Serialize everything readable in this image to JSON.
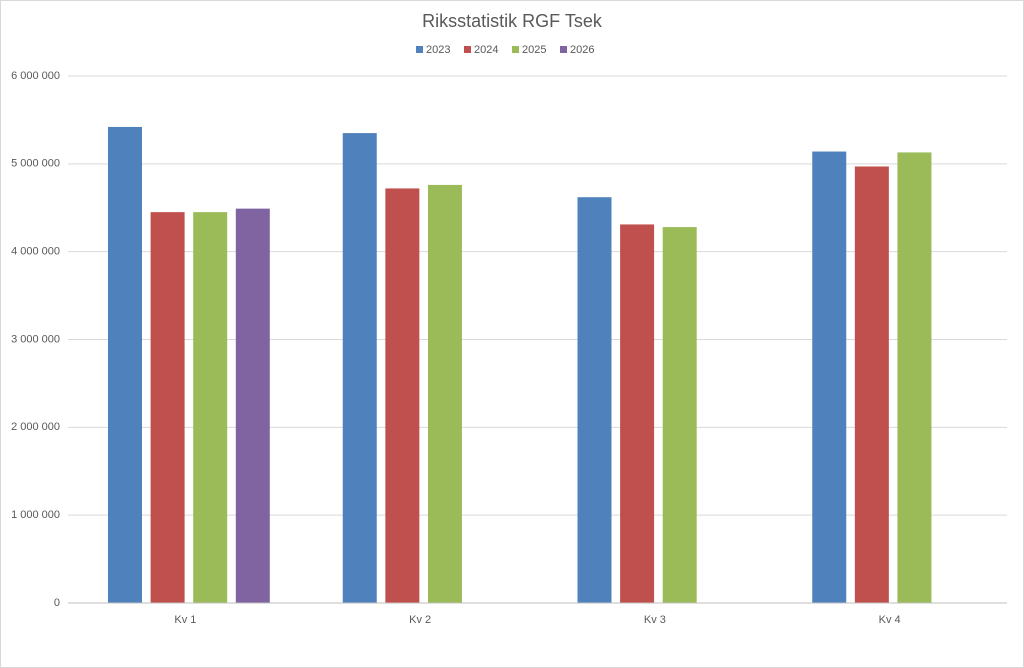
{
  "chart_data": {
    "type": "bar",
    "title": "Riksstatistik RGF Tsek",
    "categories": [
      "Kv 1",
      "Kv 2",
      "Kv 3",
      "Kv 4"
    ],
    "series": [
      {
        "name": "2023",
        "color": "#4f81bd",
        "values": [
          5420000,
          5350000,
          4620000,
          5140000
        ]
      },
      {
        "name": "2024",
        "color": "#c0504d",
        "values": [
          4450000,
          4720000,
          4310000,
          4970000
        ]
      },
      {
        "name": "2025",
        "color": "#9bbb59",
        "values": [
          4450000,
          4760000,
          4280000,
          5130000
        ]
      },
      {
        "name": "2026",
        "color": "#8064a2",
        "values": [
          4490000,
          null,
          null,
          null
        ]
      }
    ],
    "ylim": [
      0,
      6000000
    ],
    "yticks": [
      0,
      {
        "value": 1000000,
        "label": "1 000 000"
      },
      {
        "value": 2000000,
        "label": "2 000 000"
      },
      {
        "value": 3000000,
        "label": "3 000 000"
      },
      {
        "value": 4000000,
        "label": "4 000 000"
      },
      {
        "value": 5000000,
        "label": "5 000 000"
      },
      {
        "value": 6000000,
        "label": "6 000 000"
      }
    ],
    "grid": true,
    "legend": "top"
  }
}
